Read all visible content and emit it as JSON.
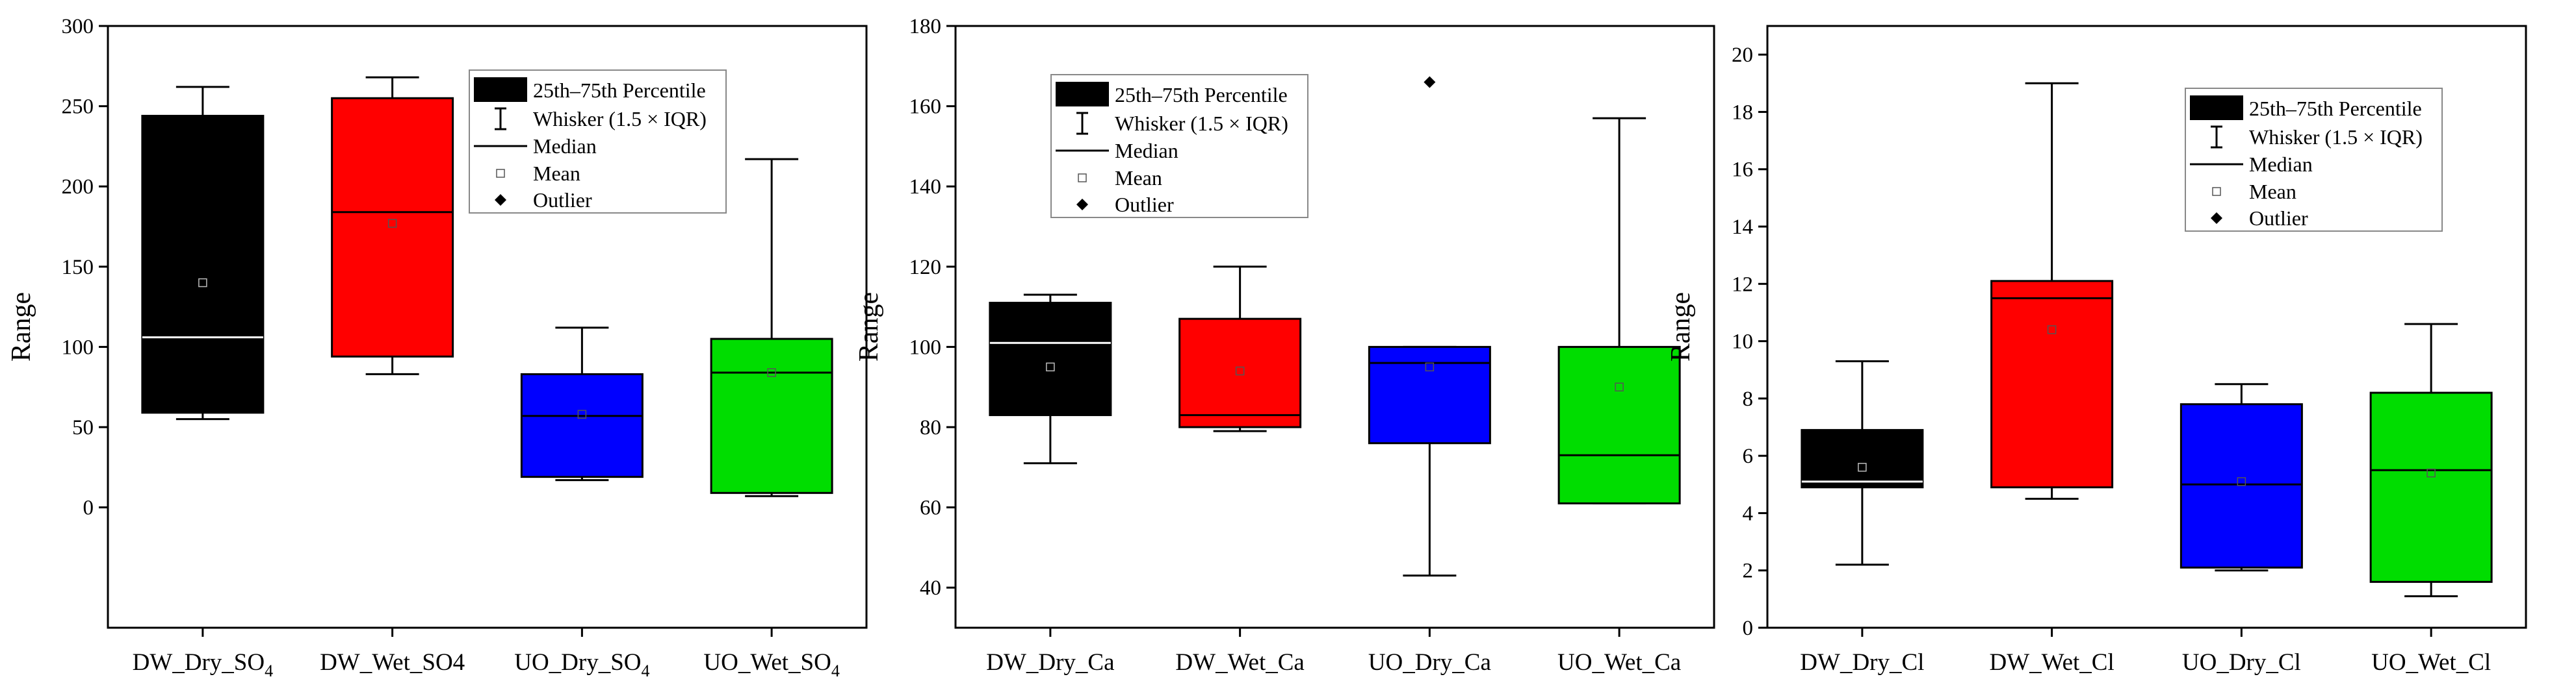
{
  "chart_data": [
    {
      "type": "box",
      "ylabel": "Range",
      "ylim": [
        -75,
        300
      ],
      "yticks": [
        0,
        50,
        100,
        150,
        200,
        250,
        300
      ],
      "categories": [
        {
          "label": "DW_Dry_SO",
          "sub": "4"
        },
        {
          "label": "DW_Wet_SO4",
          "sub": ""
        },
        {
          "label": "UO_Dry_SO",
          "sub": "4"
        },
        {
          "label": "UO_Wet_SO",
          "sub": "4"
        }
      ],
      "boxes": [
        {
          "q1": 59,
          "q3": 244,
          "median": 106,
          "mean": 140,
          "whisker_low": 55,
          "whisker_high": 262,
          "outliers": [],
          "color": "#000000"
        },
        {
          "q1": 94,
          "q3": 255,
          "median": 184,
          "mean": 177,
          "whisker_low": 83,
          "whisker_high": 268,
          "outliers": [],
          "color": "#ff0000"
        },
        {
          "q1": 19,
          "q3": 83,
          "median": 57,
          "mean": 58,
          "whisker_low": 17,
          "whisker_high": 112,
          "outliers": [],
          "color": "#0000ff"
        },
        {
          "q1": 9,
          "q3": 105,
          "median": 84,
          "mean": 84,
          "whisker_low": 7,
          "whisker_high": 217,
          "outliers": [],
          "color": "#00dd00"
        }
      ],
      "legend": {
        "placement": "top-right",
        "items": [
          "25th–75th Percentile",
          "Whisker (1.5 × IQR)",
          "Median",
          "Mean",
          "Outlier"
        ]
      }
    },
    {
      "type": "box",
      "ylabel": "Range",
      "ylim": [
        30,
        180
      ],
      "yticks": [
        40,
        60,
        80,
        100,
        120,
        140,
        160,
        180
      ],
      "categories": [
        {
          "label": "DW_Dry_Ca",
          "sub": ""
        },
        {
          "label": "DW_Wet_Ca",
          "sub": ""
        },
        {
          "label": "UO_Dry_Ca",
          "sub": ""
        },
        {
          "label": "UO_Wet_Ca",
          "sub": ""
        }
      ],
      "boxes": [
        {
          "q1": 83,
          "q3": 111,
          "median": 101,
          "mean": 95,
          "whisker_low": 71,
          "whisker_high": 113,
          "outliers": [],
          "color": "#000000"
        },
        {
          "q1": 80,
          "q3": 107,
          "median": 83,
          "mean": 94,
          "whisker_low": 79,
          "whisker_high": 120,
          "outliers": [],
          "color": "#ff0000"
        },
        {
          "q1": 76,
          "q3": 100,
          "median": 96,
          "mean": 95,
          "whisker_low": 43,
          "whisker_high": 100,
          "outliers": [
            166
          ],
          "color": "#0000ff"
        },
        {
          "q1": 61,
          "q3": 100,
          "median": 73,
          "mean": 90,
          "whisker_low": 61,
          "whisker_high": 157,
          "outliers": [],
          "color": "#00dd00"
        }
      ],
      "legend": {
        "placement": "top-center",
        "items": [
          "25th–75th Percentile",
          "Whisker (1.5 × IQR)",
          "Median",
          "Mean",
          "Outlier"
        ]
      }
    },
    {
      "type": "box",
      "ylabel": "Range",
      "ylim": [
        0,
        21
      ],
      "yticks": [
        0,
        2,
        4,
        6,
        8,
        10,
        12,
        14,
        16,
        18,
        20
      ],
      "categories": [
        {
          "label": "DW_Dry_Cl",
          "sub": ""
        },
        {
          "label": "DW_Wet_Cl",
          "sub": ""
        },
        {
          "label": "UO_Dry_Cl",
          "sub": ""
        },
        {
          "label": "UO_Wet_Cl",
          "sub": ""
        }
      ],
      "boxes": [
        {
          "q1": 4.9,
          "q3": 6.9,
          "median": 5.1,
          "mean": 5.6,
          "whisker_low": 2.2,
          "whisker_high": 9.3,
          "outliers": [],
          "color": "#000000"
        },
        {
          "q1": 4.9,
          "q3": 12.1,
          "median": 11.5,
          "mean": 10.4,
          "whisker_low": 4.5,
          "whisker_high": 19.0,
          "outliers": [],
          "color": "#ff0000"
        },
        {
          "q1": 2.1,
          "q3": 7.8,
          "median": 5.0,
          "mean": 5.1,
          "whisker_low": 2.0,
          "whisker_high": 8.5,
          "outliers": [],
          "color": "#0000ff"
        },
        {
          "q1": 1.6,
          "q3": 8.2,
          "median": 5.5,
          "mean": 5.4,
          "whisker_low": 1.1,
          "whisker_high": 10.6,
          "outliers": [],
          "color": "#00dd00"
        }
      ],
      "legend": {
        "placement": "top-right",
        "items": [
          "25th–75th Percentile",
          "Whisker (1.5 × IQR)",
          "Median",
          "Mean",
          "Outlier"
        ]
      }
    }
  ]
}
